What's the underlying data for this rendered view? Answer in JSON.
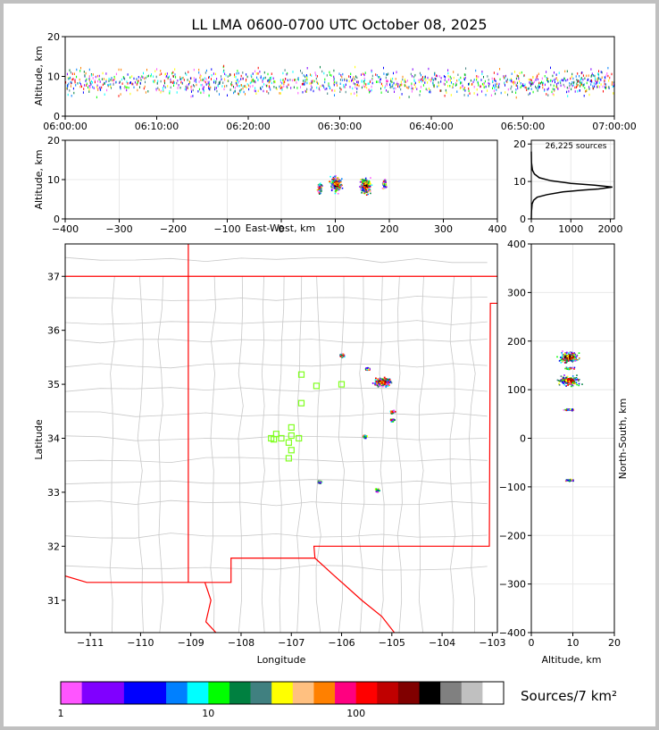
{
  "title": "LL LMA 0600-0700 UTC October 08, 2025",
  "colors": {
    "state_border": "#ff0000",
    "county_border": "#c8c8c8",
    "station": "#80ff20",
    "grid": "#e8e8e8",
    "background": "#c0c0c0"
  },
  "chart_data": [
    {
      "id": "time-height",
      "type": "scatter",
      "ylabel": "Altitude, km",
      "ylim": [
        0,
        20
      ],
      "x_ticks": [
        "06:00:00",
        "06:10:00",
        "06:20:00",
        "06:30:00",
        "06:40:00",
        "06:50:00",
        "07:00:00"
      ],
      "y_ticks": [
        0,
        10,
        20
      ],
      "density": {
        "altitude_core_km": [
          5,
          12
        ],
        "altitude_peak_km": 8.5
      }
    },
    {
      "id": "east-west-altitude",
      "type": "scatter",
      "xlabel": "East-West, km",
      "ylabel": "Altitude, km",
      "xlim": [
        -400,
        400
      ],
      "ylim": [
        0,
        20
      ],
      "x_ticks": [
        -400,
        -300,
        -200,
        -100,
        0,
        100,
        200,
        300,
        400
      ],
      "y_ticks": [
        0,
        10,
        20
      ],
      "clusters": [
        {
          "x": 100,
          "y": 9,
          "peak": true
        },
        {
          "x": 155,
          "y": 8.5,
          "peak": true
        },
        {
          "x": 70,
          "y": 8,
          "peak": false
        },
        {
          "x": 190,
          "y": 9,
          "peak": false
        }
      ]
    },
    {
      "id": "altitude-histogram",
      "type": "line",
      "annotation": "26,225 sources",
      "xlim": [
        0,
        2100
      ],
      "ylim": [
        0,
        21
      ],
      "x_ticks": [
        0,
        1000,
        2000
      ],
      "y_ticks": [
        0,
        10,
        20
      ],
      "points": [
        [
          0,
          0
        ],
        [
          5,
          2
        ],
        [
          20,
          4
        ],
        [
          60,
          5
        ],
        [
          150,
          5.8
        ],
        [
          400,
          6.5
        ],
        [
          800,
          7.2
        ],
        [
          1300,
          7.7
        ],
        [
          1700,
          8
        ],
        [
          2050,
          8.5
        ],
        [
          1600,
          9
        ],
        [
          1000,
          9.5
        ],
        [
          500,
          10.2
        ],
        [
          200,
          11
        ],
        [
          80,
          12
        ],
        [
          30,
          13
        ],
        [
          5,
          15
        ],
        [
          0,
          18
        ]
      ]
    },
    {
      "id": "plan-view-map",
      "type": "scatter",
      "xlabel": "Longitude",
      "ylabel": "Latitude",
      "xlim": [
        -111.5,
        -102.9
      ],
      "ylim": [
        30.4,
        37.6
      ],
      "x_ticks": [
        -111,
        -110,
        -109,
        -108,
        -107,
        -106,
        -105,
        -104,
        -103
      ],
      "y_ticks": [
        31,
        32,
        33,
        34,
        35,
        36,
        37
      ],
      "clusters": [
        {
          "lon": -105.2,
          "lat": 35.05,
          "peak": true
        },
        {
          "lon": -106.0,
          "lat": 35.55,
          "peak": false
        },
        {
          "lon": -105.5,
          "lat": 35.3,
          "peak": false
        },
        {
          "lon": -105.0,
          "lat": 34.5,
          "peak": false
        },
        {
          "lon": -105.0,
          "lat": 34.35,
          "peak": false
        },
        {
          "lon": -105.55,
          "lat": 34.05,
          "peak": false
        },
        {
          "lon": -106.45,
          "lat": 33.2,
          "peak": false
        },
        {
          "lon": -105.3,
          "lat": 33.05,
          "peak": false
        }
      ],
      "stations": [
        [
          -106.8,
          35.18
        ],
        [
          -106.5,
          34.97
        ],
        [
          -106.0,
          35.0
        ],
        [
          -106.8,
          34.65
        ],
        [
          -107.3,
          34.08
        ],
        [
          -107.4,
          34.0
        ],
        [
          -107.2,
          34.0
        ],
        [
          -107.0,
          34.2
        ],
        [
          -107.0,
          34.05
        ],
        [
          -107.05,
          33.92
        ],
        [
          -106.85,
          34.0
        ],
        [
          -107.0,
          33.78
        ],
        [
          -107.05,
          33.63
        ],
        [
          -107.35,
          33.98
        ]
      ]
    },
    {
      "id": "altitude-north-south",
      "type": "scatter",
      "xlabel": "Altitude, km",
      "ylabel": "North-South, km",
      "xlim": [
        0,
        20
      ],
      "ylim": [
        -400,
        400
      ],
      "x_ticks": [
        0,
        10,
        20
      ],
      "y_ticks": [
        -400,
        -300,
        -200,
        -100,
        0,
        100,
        200,
        300,
        400
      ],
      "clusters": [
        {
          "x": 9,
          "y": 120,
          "peak": true
        },
        {
          "x": 9,
          "y": 168,
          "peak": true
        },
        {
          "x": 9,
          "y": 145,
          "peak": false
        },
        {
          "x": 9,
          "y": 60,
          "peak": false
        },
        {
          "x": 9,
          "y": -85,
          "peak": false
        }
      ]
    },
    {
      "id": "colorbar",
      "type": "heatmap",
      "label": "Sources/7 km²",
      "tick_labels": [
        "1",
        "10",
        "100"
      ],
      "tick_values": [
        1,
        10,
        100
      ],
      "colors": [
        "#ff55ff",
        "#8000ff",
        "#8000ff",
        "#0000ff",
        "#0000ff",
        "#0080ff",
        "#00ffff",
        "#00ff00",
        "#008040",
        "#408080",
        "#ffff00",
        "#ffc080",
        "#ff8000",
        "#ff0080",
        "#ff0000",
        "#c00000",
        "#800000",
        "#000000",
        "#808080",
        "#c0c0c0",
        "#ffffff"
      ]
    }
  ]
}
